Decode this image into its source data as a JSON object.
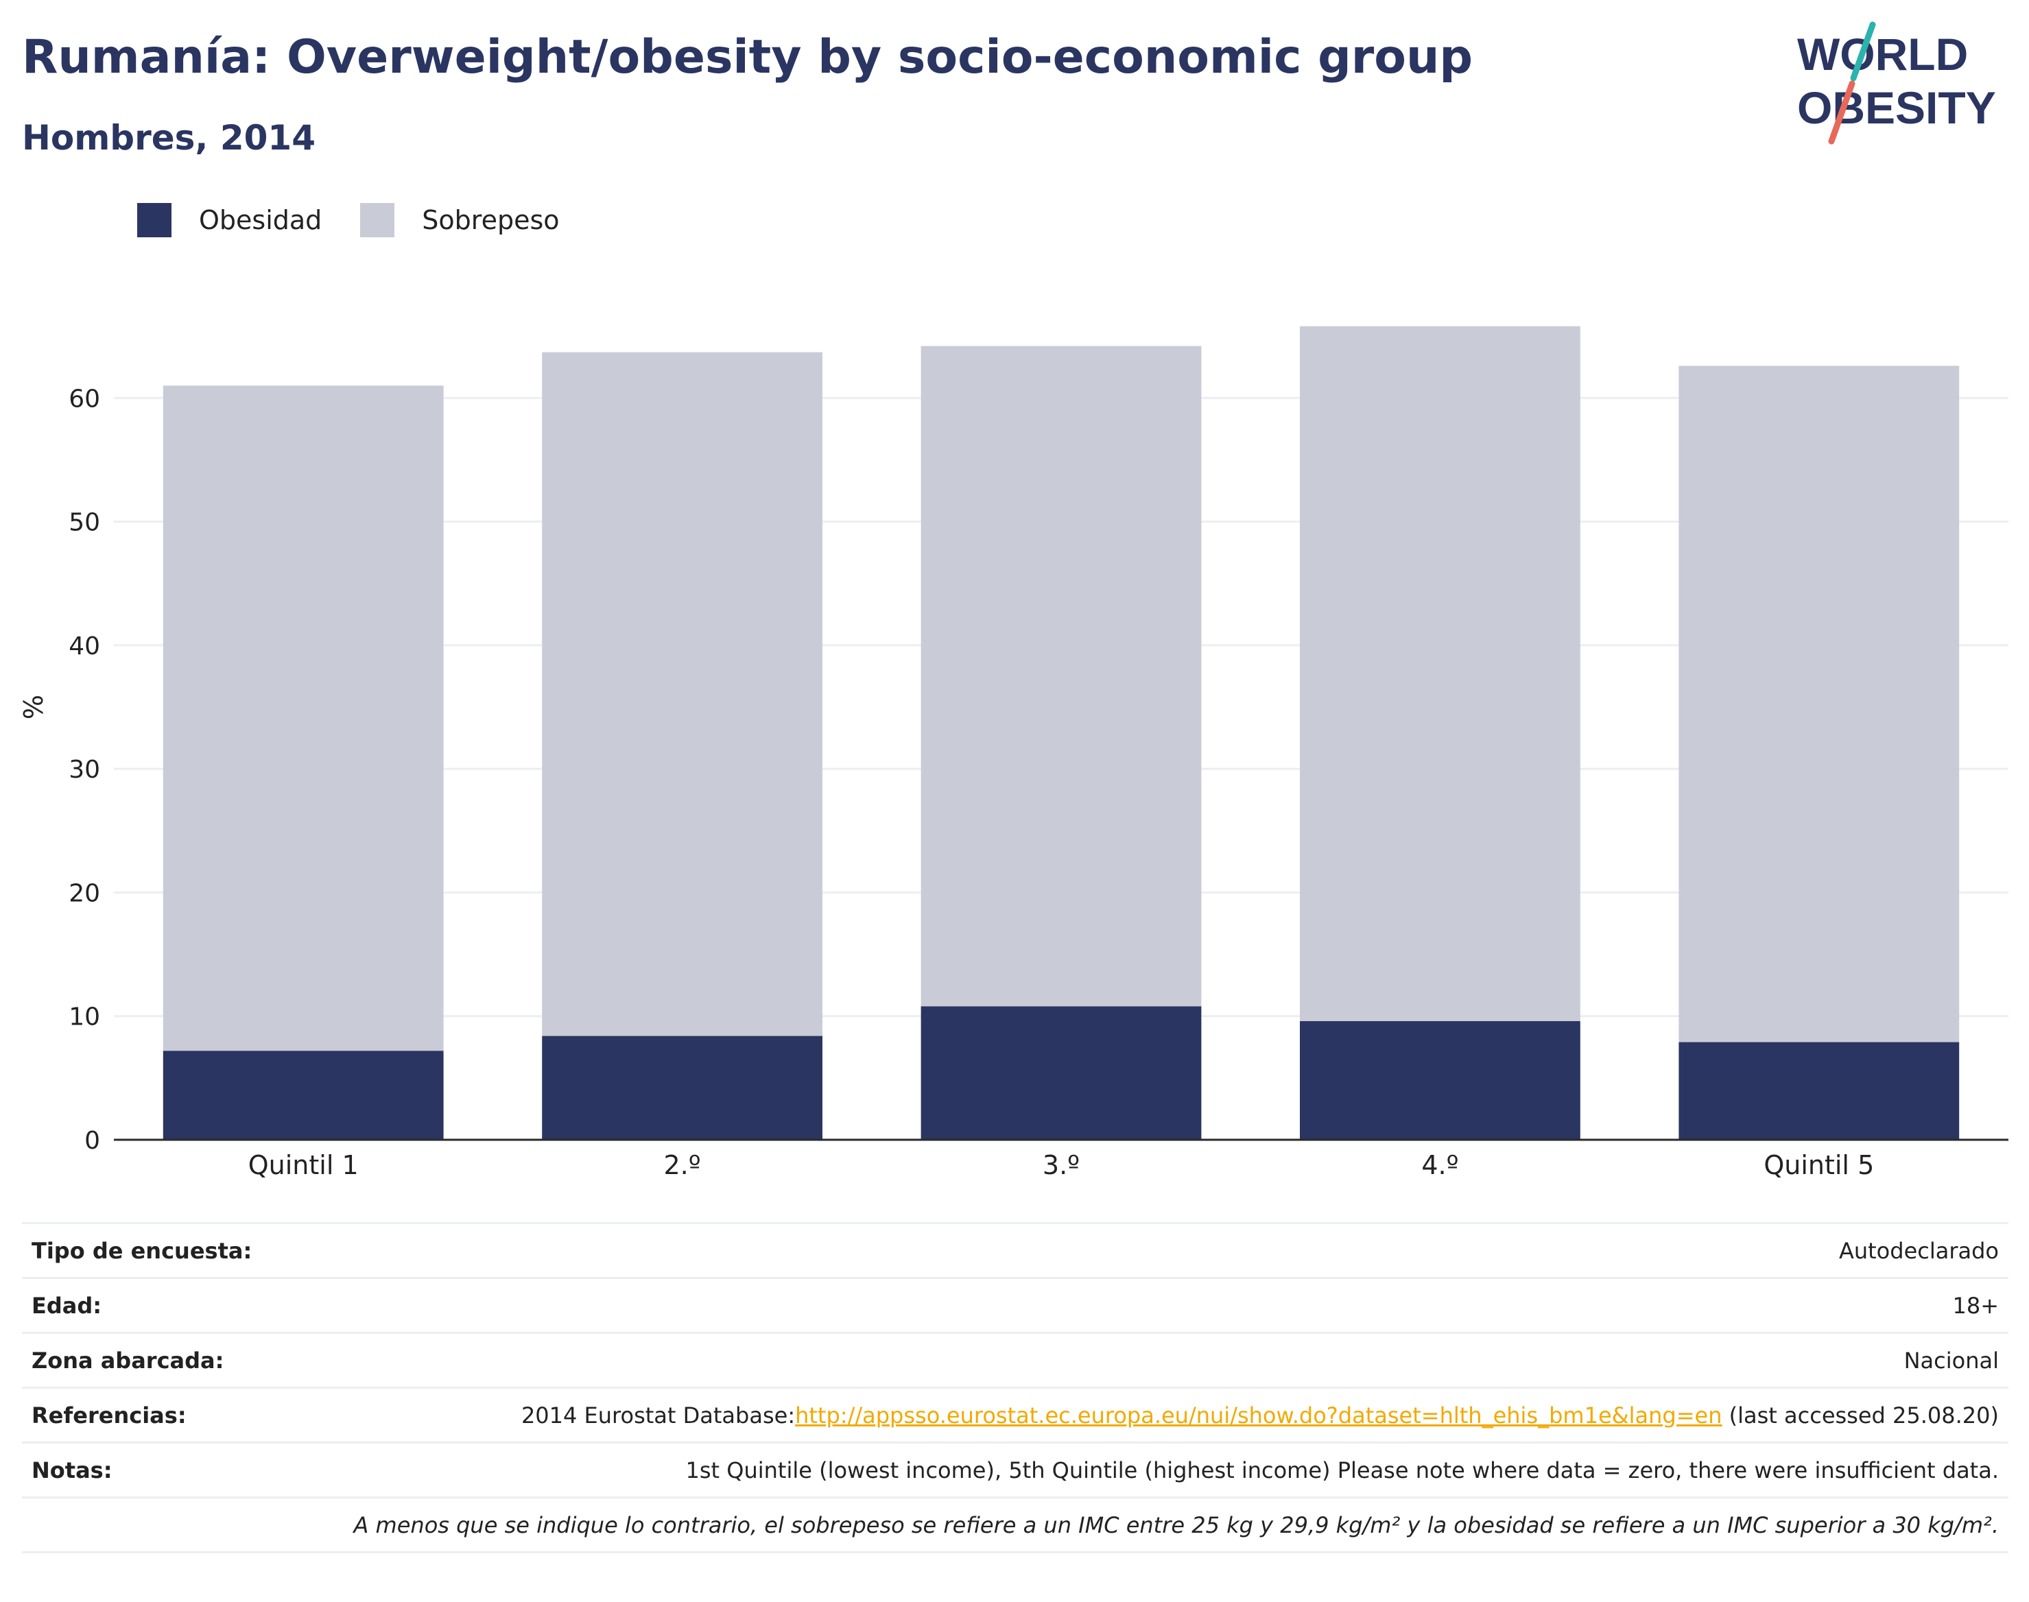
{
  "header": {
    "title": "Rumanía: Overweight/obesity by socio-economic group",
    "subtitle": "Hombres, 2014"
  },
  "logo": {
    "line1": "WORLD",
    "line2": "OBESITY",
    "colors": {
      "text": "#2a3561",
      "teal": "#2bb3ad",
      "coral": "#e8685a"
    }
  },
  "chart_data": {
    "type": "bar",
    "stacked": true,
    "categories": [
      "Quintil 1",
      "2.º",
      "3.º",
      "4.º",
      "Quintil 5"
    ],
    "series": [
      {
        "name": "Obesidad",
        "color": "#2a3561",
        "values": [
          7.2,
          8.4,
          10.8,
          9.6,
          7.9
        ]
      },
      {
        "name": "Sobrepeso",
        "color": "#c9cbd6",
        "values": [
          53.8,
          55.3,
          53.4,
          56.2,
          54.7
        ]
      }
    ],
    "ylabel": "%",
    "ylim": [
      0,
      70
    ],
    "yticks": [
      0,
      10,
      20,
      30,
      40,
      50,
      60
    ],
    "grid": true,
    "legend_position": "top-left"
  },
  "info": {
    "rows": [
      {
        "key": "Tipo de encuesta:",
        "value": "Autodeclarado"
      },
      {
        "key": "Edad:",
        "value": "18+"
      },
      {
        "key": "Zona abarcada:",
        "value": "Nacional"
      }
    ],
    "references": {
      "key": "Referencias:",
      "prefix": "2014 Eurostat Database:",
      "link": "http://appsso.eurostat.ec.europa.eu/nui/show.do?dataset=hlth_ehis_bm1e&lang=en",
      "suffix": " (last accessed 25.08.20)"
    },
    "notes": {
      "key": "Notas:",
      "value": "1st Quintile (lowest income), 5th Quintile (highest income) Please note where data = zero, there were insufficient data."
    },
    "footnote": "A menos que se indique lo contrario, el sobrepeso se refiere a un IMC entre 25 kg y 29,9 kg/m² y la obesidad se refiere a un IMC superior a 30 kg/m²."
  }
}
